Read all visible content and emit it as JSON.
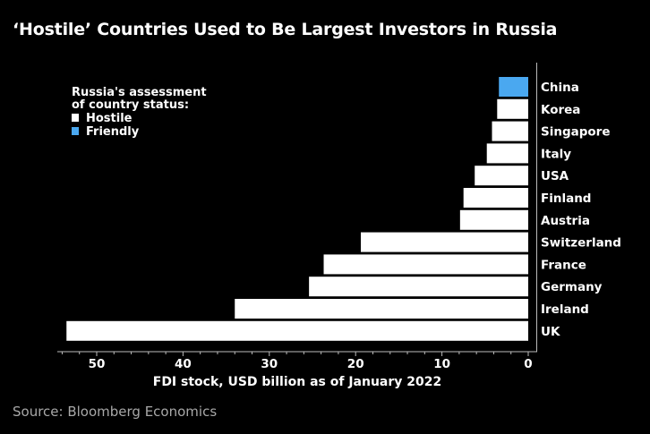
{
  "chart_data": {
    "type": "bar",
    "orientation": "horizontal",
    "title": "‘Hostile’ Countries Used to Be Largest Investors in Russia",
    "xlabel": "FDI stock, USD billion as of January 2022",
    "ylabel": "",
    "xlim": [
      0,
      54
    ],
    "x_reversed": true,
    "xticks": [
      50,
      40,
      30,
      20,
      10,
      0
    ],
    "categories": [
      "China",
      "Korea",
      "Singapore",
      "Italy",
      "USA",
      "Finland",
      "Austria",
      "Switzerland",
      "France",
      "Germany",
      "Ireland",
      "UK"
    ],
    "values": [
      3.4,
      3.6,
      4.2,
      4.8,
      6.2,
      7.5,
      7.9,
      19.4,
      23.7,
      25.4,
      34.0,
      53.5
    ],
    "status": [
      "Friendly",
      "Hostile",
      "Hostile",
      "Hostile",
      "Hostile",
      "Hostile",
      "Hostile",
      "Hostile",
      "Hostile",
      "Hostile",
      "Hostile",
      "Hostile"
    ],
    "legend": {
      "title_line1": "Russia's assessment",
      "title_line2": "of country status:",
      "placement": "top-left",
      "entries": [
        {
          "name": "Hostile",
          "color": "#ffffff"
        },
        {
          "name": "Friendly",
          "color": "#4aa8f0"
        }
      ]
    },
    "source": "Source: Bloomberg Economics"
  }
}
